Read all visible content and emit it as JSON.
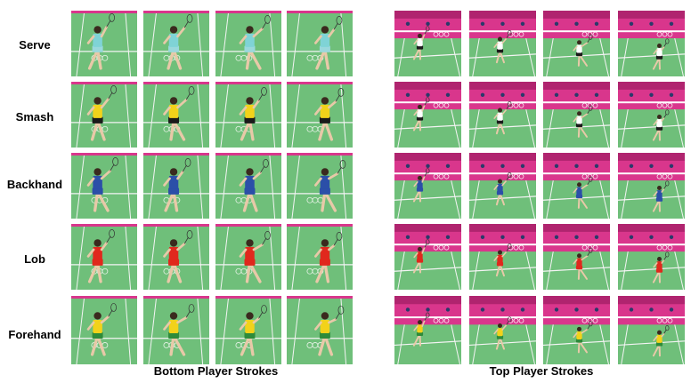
{
  "row_labels": [
    "Serve",
    "Smash",
    "Backhand",
    "Lob",
    "Forehand"
  ],
  "captions": {
    "bottom": "Bottom Player Strokes",
    "top": "Top Player Strokes"
  },
  "players": {
    "bottom": [
      {
        "stroke": "Serve",
        "shirt": "#7fd3d6",
        "skirt": "#9ad8dc"
      },
      {
        "stroke": "Smash",
        "shirt": "#f2d21a",
        "skirt": "#1a1a1a"
      },
      {
        "stroke": "Backhand",
        "shirt": "#2b4fa8",
        "skirt": "#2b4fa8"
      },
      {
        "stroke": "Lob",
        "shirt": "#e0281d",
        "skirt": "#e0281d"
      },
      {
        "stroke": "Forehand",
        "shirt": "#f2d21a",
        "skirt": "#2e8b3a"
      }
    ],
    "top": [
      {
        "stroke": "Serve",
        "shirt": "#ffffff",
        "skirt": "#1a1a1a"
      },
      {
        "stroke": "Smash",
        "shirt": "#ffffff",
        "skirt": "#1a1a1a"
      },
      {
        "stroke": "Backhand",
        "shirt": "#2b4fa8",
        "skirt": "#2b4fa8"
      },
      {
        "stroke": "Lob",
        "shirt": "#e0281d",
        "skirt": "#e0281d"
      },
      {
        "stroke": "Forehand",
        "shirt": "#f2d21a",
        "skirt": "#2e8b3a"
      }
    ]
  },
  "colors": {
    "court_green": "#6fbf7a",
    "court_line": "#f4f4f4",
    "stand_magenta": "#d9368c",
    "stand_dark": "#b0246f"
  }
}
